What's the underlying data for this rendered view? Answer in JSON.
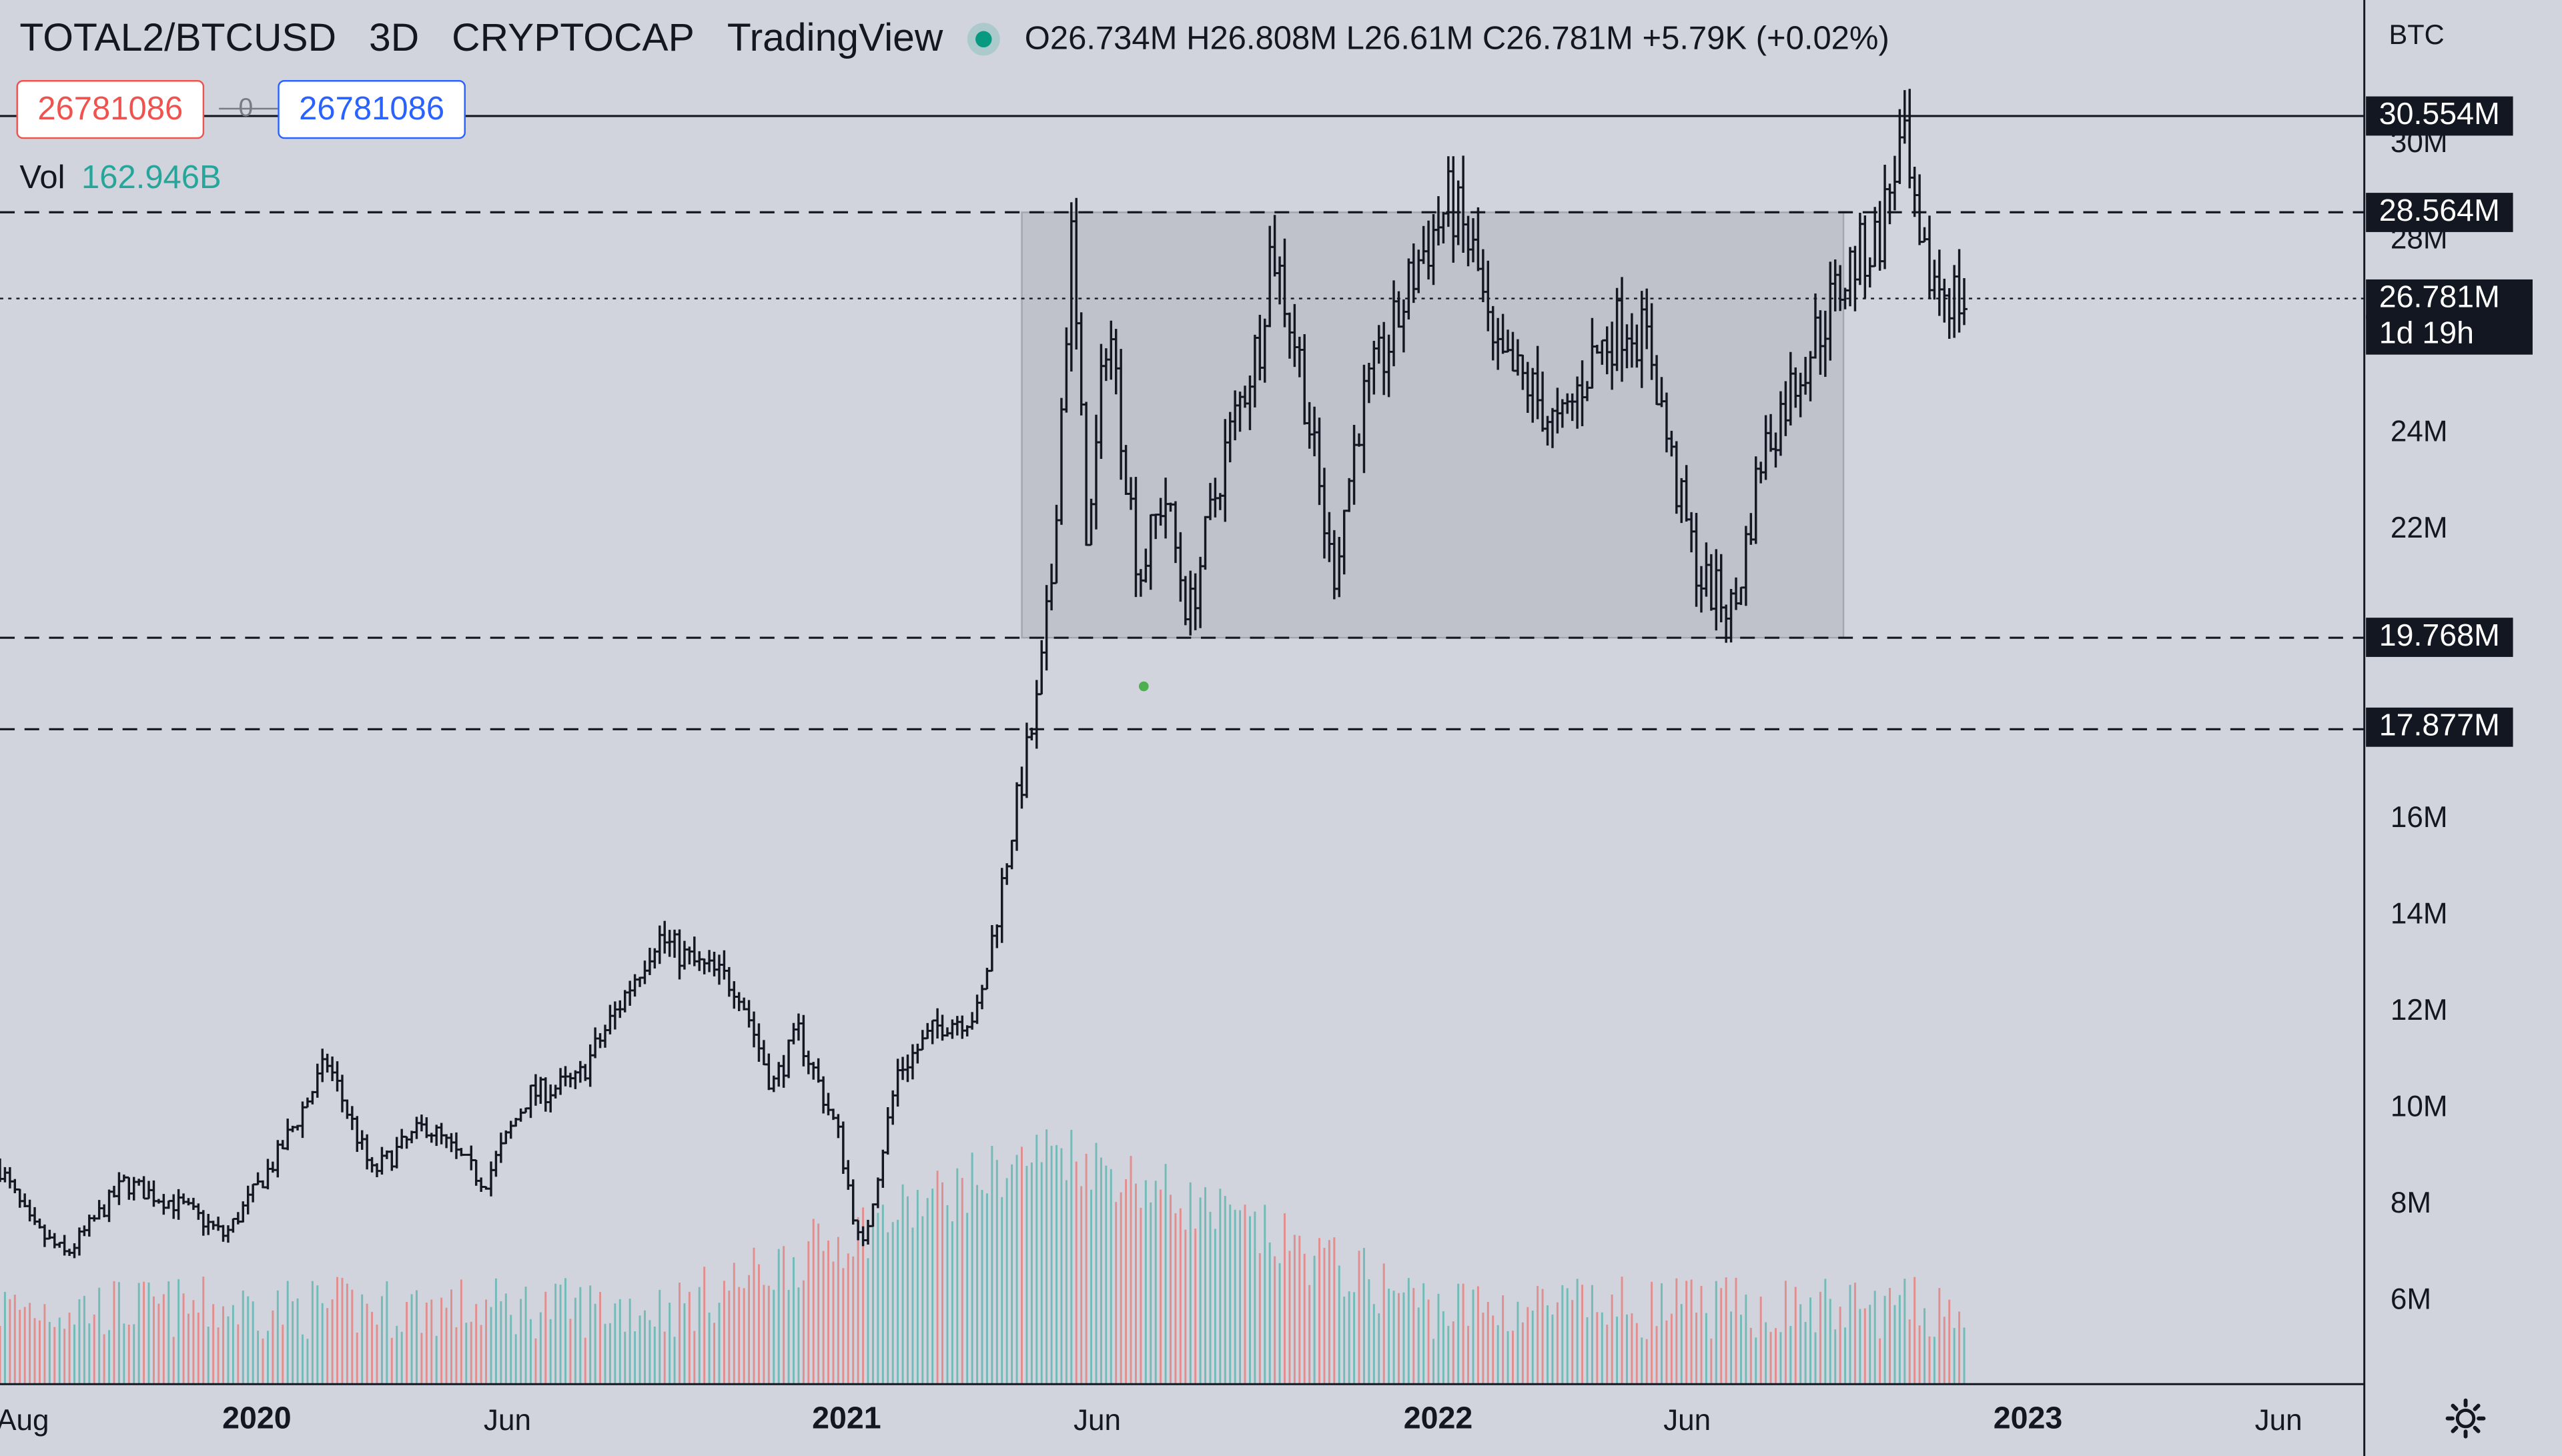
{
  "header": {
    "symbol": "TOTAL2/BTCUSD",
    "interval": "3D",
    "exchange": "CRYPTOCAP",
    "source": "TradingView",
    "ohlc": "O26.734M  H26.808M  L26.61M  C26.781M  +5.79K (+0.02%)"
  },
  "price_boxes": {
    "sell": "26781086",
    "spread": "0",
    "buy": "26781086"
  },
  "volume": {
    "label": "Vol",
    "value": "162.946B"
  },
  "axis": {
    "currency": "BTC",
    "y_ticks": [
      "30M",
      "28M",
      "24M",
      "22M",
      "16M",
      "14M",
      "12M",
      "10M",
      "8M",
      "6M"
    ],
    "x_ticks": [
      "Aug",
      "2020",
      "Jun",
      "2021",
      "Jun",
      "2022",
      "Jun",
      "2023",
      "Jun"
    ]
  },
  "price_tags": {
    "high_line": "30.554M",
    "resistance": "28.564M",
    "current": "26.781M",
    "countdown": "1d 19h",
    "support_1": "19.768M",
    "support_2": "17.877M"
  },
  "colors": {
    "up": "#26a69a",
    "down": "#ef5350",
    "bars": "#131722",
    "range_box": "rgba(120,123,134,0.2)"
  },
  "icons": {
    "settings": "gear-icon"
  },
  "chart_data": {
    "type": "ohlc",
    "y_unit": "M",
    "ylim": [
      4.5,
      31.5
    ],
    "xlim": [
      "2019-08-01",
      "2023-07-01"
    ],
    "horizontal_lines": [
      {
        "value": 30.554,
        "style": "solid"
      },
      {
        "value": 28.564,
        "style": "dashed"
      },
      {
        "value": 26.781,
        "style": "dotted"
      },
      {
        "value": 19.768,
        "style": "dashed"
      },
      {
        "value": 17.877,
        "style": "dashed"
      }
    ],
    "range_box": {
      "from": "2021-04-10",
      "to": "2022-08-20",
      "low": 19.768,
      "high": 28.564
    },
    "price_path": [
      [
        "2019-08-01",
        8.8
      ],
      [
        "2019-08-20",
        7.6
      ],
      [
        "2019-09-10",
        7.0
      ],
      [
        "2019-10-15",
        8.5
      ],
      [
        "2019-11-20",
        8.0
      ],
      [
        "2019-12-15",
        7.4
      ],
      [
        "2020-01-15",
        9.0
      ],
      [
        "2020-02-15",
        11.0
      ],
      [
        "2020-03-13",
        8.7
      ],
      [
        "2020-04-15",
        9.7
      ],
      [
        "2020-05-20",
        8.5
      ],
      [
        "2020-06-15",
        10.3
      ],
      [
        "2020-07-15",
        10.6
      ],
      [
        "2020-08-10",
        12.2
      ],
      [
        "2020-09-01",
        13.6
      ],
      [
        "2020-09-25",
        13.0
      ],
      [
        "2020-10-20",
        12.6
      ],
      [
        "2020-11-10",
        10.5
      ],
      [
        "2020-11-26",
        11.6
      ],
      [
        "2020-12-20",
        9.5
      ],
      [
        "2021-01-03",
        7.0
      ],
      [
        "2021-01-25",
        10.8
      ],
      [
        "2021-02-20",
        11.8
      ],
      [
        "2021-03-15",
        12.0
      ],
      [
        "2021-04-05",
        16.0
      ],
      [
        "2021-04-20",
        18.5
      ],
      [
        "2021-04-28",
        21.0
      ],
      [
        "2021-05-10",
        28.0
      ],
      [
        "2021-05-20",
        21.5
      ],
      [
        "2021-06-01",
        26.5
      ],
      [
        "2021-06-20",
        21.0
      ],
      [
        "2021-07-05",
        22.8
      ],
      [
        "2021-07-20",
        20.2
      ],
      [
        "2021-08-10",
        23.5
      ],
      [
        "2021-09-01",
        26.0
      ],
      [
        "2021-09-08",
        28.0
      ],
      [
        "2021-09-25",
        25.5
      ],
      [
        "2021-10-15",
        21.0
      ],
      [
        "2021-11-01",
        24.5
      ],
      [
        "2021-11-20",
        26.0
      ],
      [
        "2021-12-05",
        27.5
      ],
      [
        "2021-12-25",
        28.8
      ],
      [
        "2022-01-10",
        27.5
      ],
      [
        "2022-01-20",
        25.5
      ],
      [
        "2022-02-10",
        25.0
      ],
      [
        "2022-03-01",
        24.0
      ],
      [
        "2022-03-20",
        25.5
      ],
      [
        "2022-04-10",
        26.4
      ],
      [
        "2022-04-25",
        25.8
      ],
      [
        "2022-05-10",
        23.0
      ],
      [
        "2022-05-25",
        21.0
      ],
      [
        "2022-06-15",
        20.3
      ],
      [
        "2022-07-01",
        23.5
      ],
      [
        "2022-07-20",
        25.0
      ],
      [
        "2022-08-10",
        26.5
      ],
      [
        "2022-08-25",
        27.5
      ],
      [
        "2022-09-10",
        28.0
      ],
      [
        "2022-09-20",
        29.5
      ],
      [
        "2022-09-25",
        30.0
      ],
      [
        "2022-10-05",
        27.5
      ],
      [
        "2022-10-20",
        27.0
      ],
      [
        "2022-11-01",
        26.7
      ]
    ]
  }
}
